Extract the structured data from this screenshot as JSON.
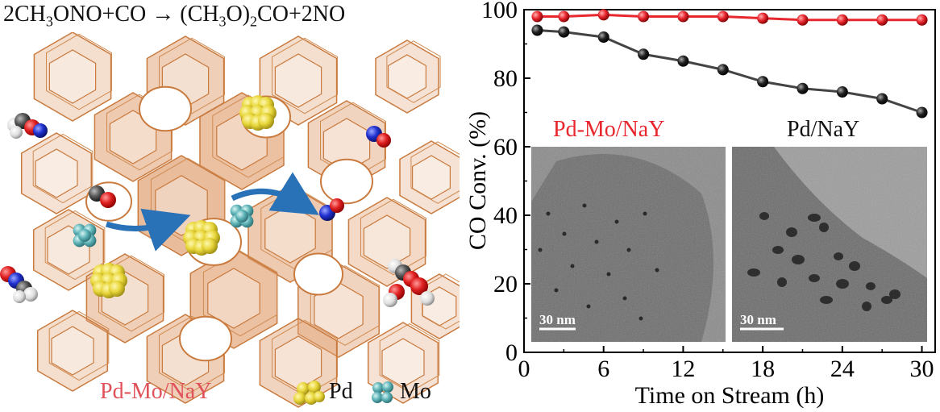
{
  "reaction": {
    "lhs_a": "2CH",
    "lhs_sub_3": "3",
    "lhs_b": "ONO+CO",
    "arrow": "→",
    "rhs_a": "(CH",
    "rhs_sub_3": "3",
    "rhs_b": "O)",
    "rhs_sub_2": "2",
    "rhs_c": "CO+2NO"
  },
  "schematic": {
    "caption": "Pd-Mo/NaY",
    "legend": [
      {
        "label": "Pd",
        "color": "#e8d63a",
        "icon": "pd-cluster-icon"
      },
      {
        "label": "Mo",
        "color": "#5fb4b8",
        "icon": "mo-cluster-icon"
      }
    ],
    "framework_color": "#e0a070"
  },
  "chart_data": {
    "type": "line",
    "xlabel": "Time on Stream (h)",
    "ylabel": "CO Conv. (%)",
    "xlim": [
      0,
      31
    ],
    "ylim": [
      0,
      100
    ],
    "xticks": [
      0,
      6,
      12,
      18,
      24,
      30
    ],
    "yticks": [
      0,
      20,
      40,
      60,
      80,
      100
    ],
    "grid": false,
    "series": [
      {
        "name": "Pd-Mo/NaY",
        "color": "#e8262e",
        "x": [
          1,
          3,
          6,
          9,
          12,
          15,
          18,
          21,
          24,
          27,
          30
        ],
        "y": [
          98,
          98,
          98.5,
          98,
          98,
          98,
          97.5,
          97,
          97,
          97,
          97
        ]
      },
      {
        "name": "Pd/NaY",
        "color": "#111111",
        "x": [
          1,
          3,
          6,
          9,
          12,
          15,
          18,
          21,
          24,
          27,
          30
        ],
        "y": [
          94,
          93.5,
          92,
          87,
          85,
          82.5,
          79,
          77,
          76,
          74,
          70
        ]
      }
    ],
    "insets": [
      {
        "label": "Pd-Mo/NaY",
        "label_color": "#e8262e",
        "scale": "30 nm"
      },
      {
        "label": "Pd/NaY",
        "label_color": "#111111",
        "scale": "30 nm"
      }
    ]
  }
}
